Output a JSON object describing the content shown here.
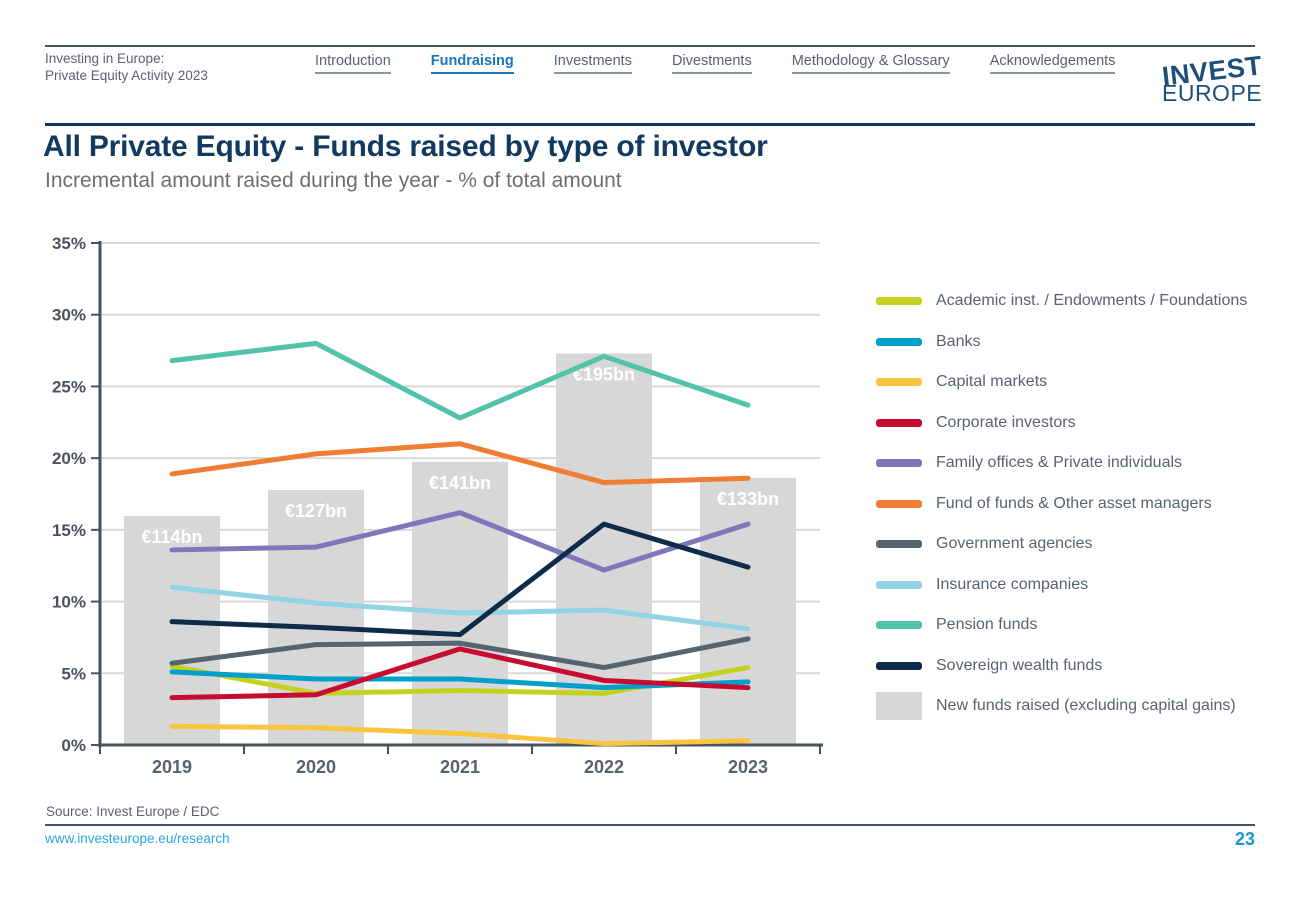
{
  "header": {
    "doc_title_line1": "Investing in Europe:",
    "doc_title_line2": "Private Equity Activity 2023",
    "nav": [
      {
        "label": "Introduction",
        "active": false
      },
      {
        "label": "Fundraising",
        "active": true
      },
      {
        "label": "Investments",
        "active": false
      },
      {
        "label": "Divestments",
        "active": false
      },
      {
        "label": "Methodology & Glossary",
        "active": false
      },
      {
        "label": "Acknowledgements",
        "active": false
      }
    ],
    "logo": {
      "line1": "INVEST",
      "line2": "EUROPE"
    }
  },
  "title": "All Private Equity - Funds raised by type of investor",
  "subtitle": "Incremental amount raised during the year - % of total amount",
  "chart_data": {
    "type": "line",
    "categories": [
      "2019",
      "2020",
      "2021",
      "2022",
      "2023"
    ],
    "series": [
      {
        "name": "Academic inst. / Endowments / Foundations",
        "color": "#c4d21f",
        "values": [
          5.5,
          3.6,
          3.8,
          3.6,
          5.4
        ]
      },
      {
        "name": "Banks",
        "color": "#00a0ca",
        "values": [
          5.1,
          4.6,
          4.6,
          4.0,
          4.4
        ]
      },
      {
        "name": "Capital markets",
        "color": "#f9c440",
        "values": [
          1.3,
          1.2,
          0.8,
          0.1,
          0.3
        ]
      },
      {
        "name": "Corporate investors",
        "color": "#c60c30",
        "values": [
          3.3,
          3.5,
          6.7,
          4.5,
          4.0
        ]
      },
      {
        "name": "Family offices & Private individuals",
        "color": "#7d77bb",
        "values": [
          13.6,
          13.8,
          16.2,
          12.2,
          15.4
        ]
      },
      {
        "name": "Fund of funds & Other asset managers",
        "color": "#ef7d33",
        "values": [
          18.9,
          20.3,
          21.0,
          18.3,
          18.6
        ]
      },
      {
        "name": "Government agencies",
        "color": "#55646e",
        "values": [
          5.7,
          7.0,
          7.1,
          5.4,
          7.4
        ]
      },
      {
        "name": "Insurance companies",
        "color": "#92d4e4",
        "values": [
          11.0,
          9.9,
          9.2,
          9.4,
          8.1
        ]
      },
      {
        "name": "Pension funds",
        "color": "#52c3a8",
        "values": [
          26.8,
          28.0,
          22.8,
          27.1,
          23.7
        ]
      },
      {
        "name": "Sovereign wealth funds",
        "color": "#0e2b4a",
        "values": [
          8.6,
          8.2,
          7.7,
          15.4,
          12.4
        ]
      }
    ],
    "bars": {
      "name": "New funds raised (excluding capital gains)",
      "color": "#d7d7d7",
      "labels": [
        "€114bn",
        "€127bn",
        "€141bn",
        "€195bn",
        "€133bn"
      ],
      "values_eur_bn": [
        114,
        127,
        141,
        195,
        133
      ],
      "axis_units_per_eur_bn": 0.14
    },
    "title": "All Private Equity - Funds raised by type of investor",
    "subtitle": "Incremental amount raised during the year - % of total amount",
    "xlabel": "",
    "ylabel": "",
    "ylim": [
      0,
      35
    ],
    "yticks": [
      "0%",
      "5%",
      "10%",
      "15%",
      "20%",
      "25%",
      "30%",
      "35%"
    ],
    "grid": true,
    "legend_position": "right"
  },
  "footer": {
    "source": "Source: Invest Europe / EDC",
    "link": "www.investeurope.eu/research",
    "page_number": "23"
  }
}
